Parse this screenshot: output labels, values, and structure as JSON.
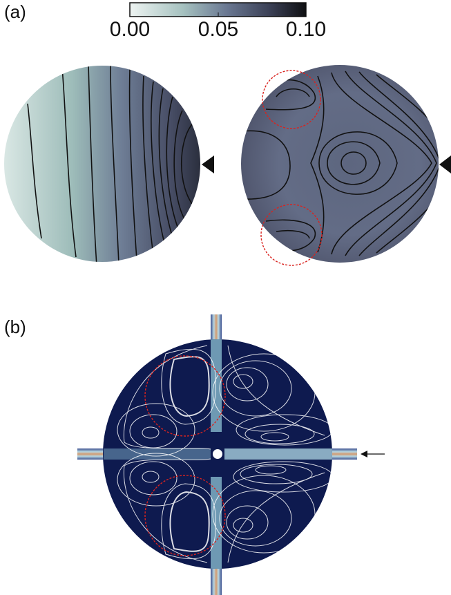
{
  "panel_a": {
    "label": "(a)",
    "colorbar": {
      "ticks": [
        "0.00",
        "0.05",
        "0.10"
      ],
      "colors": [
        "#e8f1ef",
        "#9fbcbb",
        "#5d6985",
        "#3d4257",
        "#111214"
      ]
    },
    "left_disk": {
      "name": "left-disk"
    },
    "right_disk": {
      "name": "right-disk"
    },
    "highlight_color": "#d9231f"
  },
  "panel_b": {
    "label": "(b)",
    "background": "#0e1a4f",
    "streamline_color": "#ffffff",
    "channel_colors": [
      "#3a4f8f",
      "#b8d6e0",
      "#d39a6f",
      "#b8d6e0",
      "#3a4f8f"
    ]
  }
}
